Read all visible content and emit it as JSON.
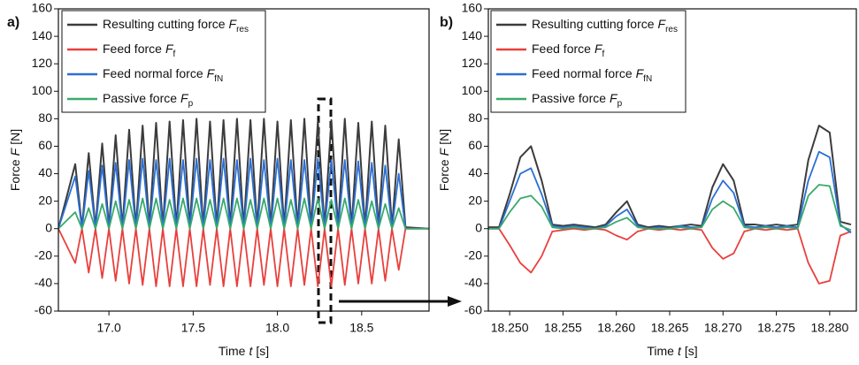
{
  "chart_data": [
    {
      "type": "line",
      "panel_label": "a)",
      "xlabel": {
        "text": "Time",
        "symbol": "t",
        "unit": "[s]"
      },
      "ylabel": {
        "text": "Force",
        "symbol": "F",
        "unit": "[N]"
      },
      "xlim": [
        16.7,
        18.9
      ],
      "ylim": [
        -60,
        160
      ],
      "xticks": [
        {
          "value": 17,
          "label": "17.0"
        },
        {
          "value": 17.5,
          "label": "17.5"
        },
        {
          "value": 18,
          "label": "18.0"
        },
        {
          "value": 18.5,
          "label": "18.5"
        }
      ],
      "yticks": [
        -60,
        -40,
        -20,
        0,
        20,
        40,
        60,
        80,
        100,
        120,
        140,
        160
      ],
      "x": [
        16.7,
        16.8,
        16.84,
        16.88,
        16.92,
        16.96,
        17.0,
        17.04,
        17.08,
        17.12,
        17.16,
        17.2,
        17.24,
        17.28,
        17.32,
        17.36,
        17.4,
        17.44,
        17.48,
        17.52,
        17.56,
        17.6,
        17.64,
        17.68,
        17.72,
        17.76,
        17.8,
        17.84,
        17.88,
        17.92,
        17.96,
        18.0,
        18.04,
        18.08,
        18.12,
        18.16,
        18.2,
        18.24,
        18.28,
        18.32,
        18.36,
        18.4,
        18.44,
        18.48,
        18.52,
        18.56,
        18.6,
        18.64,
        18.68,
        18.72,
        18.76,
        18.9
      ],
      "series": [
        {
          "name": "Resulting cutting force",
          "symbol": "F",
          "subscript": "res",
          "color": "#3c3c3c",
          "values": [
            0,
            47,
            1,
            55,
            1,
            62,
            1,
            68,
            1,
            72,
            1,
            75,
            1,
            77,
            1,
            78,
            1,
            79,
            1,
            80,
            1,
            78,
            1,
            79,
            1,
            80,
            1,
            79,
            1,
            80,
            1,
            78,
            1,
            79,
            1,
            80,
            1,
            78,
            1,
            79,
            1,
            80,
            1,
            77,
            1,
            78,
            1,
            75,
            1,
            65,
            1,
            0
          ]
        },
        {
          "name": "Feed force",
          "symbol": "F",
          "subscript": "f",
          "color": "#e8403d",
          "values": [
            0,
            -25,
            0,
            -32,
            0,
            -36,
            0,
            -38,
            0,
            -40,
            0,
            -41,
            0,
            -42,
            0,
            -42,
            0,
            -42,
            0,
            -42,
            0,
            -41,
            0,
            -42,
            0,
            -42,
            0,
            -42,
            0,
            -41,
            0,
            -42,
            0,
            -42,
            0,
            -41,
            0,
            -42,
            0,
            -42,
            0,
            -41,
            0,
            -40,
            0,
            -40,
            0,
            -38,
            0,
            -30,
            0,
            0
          ]
        },
        {
          "name": "Feed normal force",
          "symbol": "F",
          "subscript": "fN",
          "color": "#2a6fd6",
          "values": [
            0,
            38,
            0,
            42,
            0,
            46,
            0,
            48,
            0,
            50,
            0,
            51,
            0,
            50,
            0,
            51,
            0,
            50,
            0,
            51,
            0,
            50,
            0,
            51,
            0,
            50,
            0,
            51,
            0,
            50,
            0,
            51,
            0,
            50,
            0,
            50,
            0,
            51,
            0,
            50,
            0,
            50,
            0,
            49,
            0,
            48,
            0,
            46,
            0,
            40,
            0,
            0
          ]
        },
        {
          "name": "Passive force",
          "symbol": "F",
          "subscript": "p",
          "color": "#3aaa6a",
          "values": [
            0,
            12,
            0,
            15,
            0,
            18,
            0,
            20,
            0,
            21,
            0,
            22,
            0,
            22,
            0,
            21,
            0,
            22,
            0,
            22,
            0,
            21,
            0,
            22,
            0,
            22,
            0,
            21,
            0,
            22,
            0,
            22,
            0,
            21,
            0,
            22,
            0,
            22,
            0,
            21,
            0,
            22,
            0,
            21,
            0,
            20,
            0,
            18,
            0,
            15,
            0,
            0
          ]
        }
      ]
    },
    {
      "type": "line",
      "panel_label": "b)",
      "xlabel": {
        "text": "Time",
        "symbol": "t",
        "unit": "[s]"
      },
      "ylabel": {
        "text": "Force",
        "symbol": "F",
        "unit": "[N]"
      },
      "xlim": [
        18.248,
        18.2825
      ],
      "ylim": [
        -60,
        160
      ],
      "xticks": [
        {
          "value": 18.25,
          "label": "18.250"
        },
        {
          "value": 18.255,
          "label": "18.255"
        },
        {
          "value": 18.26,
          "label": "18.260"
        },
        {
          "value": 18.265,
          "label": "18.265"
        },
        {
          "value": 18.27,
          "label": "18.270"
        },
        {
          "value": 18.275,
          "label": "18.275"
        },
        {
          "value": 18.28,
          "label": "18.280"
        }
      ],
      "yticks": [
        -60,
        -40,
        -20,
        0,
        20,
        40,
        60,
        80,
        100,
        120,
        140,
        160
      ],
      "x": [
        18.248,
        18.249,
        18.25,
        18.251,
        18.252,
        18.253,
        18.254,
        18.255,
        18.256,
        18.257,
        18.258,
        18.259,
        18.26,
        18.261,
        18.262,
        18.263,
        18.264,
        18.265,
        18.266,
        18.267,
        18.268,
        18.269,
        18.27,
        18.271,
        18.272,
        18.273,
        18.274,
        18.275,
        18.276,
        18.277,
        18.278,
        18.279,
        18.28,
        18.281,
        18.282
      ],
      "series": [
        {
          "name": "Resulting cutting force",
          "symbol": "F",
          "subscript": "res",
          "color": "#3c3c3c",
          "values": [
            1,
            1,
            25,
            52,
            60,
            35,
            3,
            2,
            3,
            2,
            1,
            3,
            12,
            20,
            3,
            1,
            2,
            1,
            2,
            3,
            2,
            30,
            47,
            35,
            3,
            3,
            2,
            3,
            2,
            3,
            50,
            75,
            70,
            5,
            3
          ]
        },
        {
          "name": "Feed force",
          "symbol": "F",
          "subscript": "f",
          "color": "#e8403d",
          "values": [
            0,
            0,
            -12,
            -25,
            -32,
            -20,
            -2,
            -1,
            0,
            -1,
            0,
            -1,
            -5,
            -8,
            -2,
            0,
            -1,
            0,
            -1,
            0,
            -1,
            -14,
            -22,
            -18,
            -2,
            0,
            -1,
            0,
            -1,
            0,
            -25,
            -40,
            -38,
            -5,
            -2
          ]
        },
        {
          "name": "Feed normal force",
          "symbol": "F",
          "subscript": "fN",
          "color": "#2a6fd6",
          "values": [
            0,
            0,
            20,
            40,
            44,
            25,
            2,
            1,
            2,
            1,
            0,
            2,
            9,
            14,
            2,
            0,
            1,
            0,
            2,
            1,
            1,
            22,
            35,
            26,
            2,
            1,
            2,
            1,
            2,
            1,
            35,
            56,
            52,
            3,
            -3
          ]
        },
        {
          "name": "Passive force",
          "symbol": "F",
          "subscript": "p",
          "color": "#3aaa6a",
          "values": [
            0,
            0,
            12,
            22,
            24,
            16,
            1,
            0,
            1,
            0,
            0,
            1,
            5,
            8,
            1,
            0,
            0,
            0,
            1,
            0,
            1,
            14,
            20,
            15,
            1,
            0,
            1,
            0,
            1,
            0,
            24,
            32,
            31,
            2,
            -1
          ]
        }
      ]
    }
  ]
}
